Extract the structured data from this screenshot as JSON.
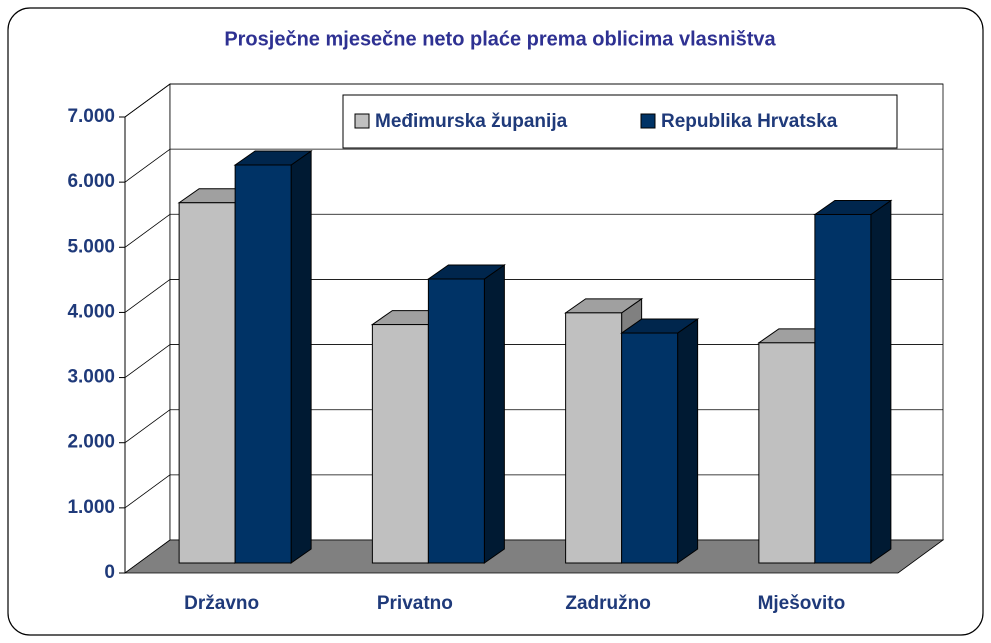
{
  "chart_data": {
    "type": "bar3d",
    "title": "Prosječne mjesečne neto plaće prema oblicima vlasništva",
    "categories": [
      "Državno",
      "Privatno",
      "Zadružno",
      "Mješovito"
    ],
    "series": [
      {
        "name": "Međimurska županija",
        "color": "#c0c0c0",
        "values": [
          5530,
          3660,
          3840,
          3380
        ]
      },
      {
        "name": "Republika Hrvatska",
        "color": "#003366",
        "values": [
          6110,
          4360,
          3530,
          5350
        ]
      }
    ],
    "ylim": [
      0,
      7000
    ],
    "yticks": [
      0,
      {
        "value": 1000,
        "label": "1.000"
      },
      {
        "value": 2000,
        "label": "2.000"
      },
      {
        "value": 3000,
        "label": "3.000"
      },
      {
        "value": 4000,
        "label": "4.000"
      },
      {
        "value": 5000,
        "label": "5.000"
      },
      {
        "value": 6000,
        "label": "6.000"
      },
      {
        "value": 7000,
        "label": "7.000"
      }
    ],
    "grid": true,
    "legend": "top-right"
  }
}
